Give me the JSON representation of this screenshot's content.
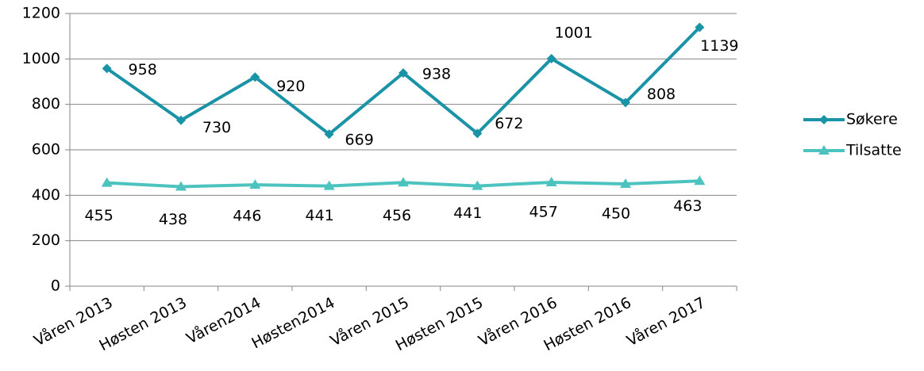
{
  "chart_data": {
    "type": "line",
    "categories": [
      "Våren 2013",
      "Høsten 2013",
      "Våren2014",
      "Høsten2014",
      "Våren 2015",
      "Høsten 2015",
      "Våren 2016",
      "Høsten 2016",
      "Våren 2017"
    ],
    "series": [
      {
        "name": "Søkere",
        "color": "#1b93a7",
        "marker": "diamond",
        "values": [
          958,
          730,
          920,
          669,
          938,
          672,
          1001,
          808,
          1139
        ]
      },
      {
        "name": "Tilsatte",
        "color": "#4cc3bf",
        "marker": "triangle",
        "values": [
          455,
          438,
          446,
          441,
          456,
          441,
          457,
          450,
          463
        ]
      }
    ],
    "ylim": [
      0,
      1200
    ],
    "yticks": [
      0,
      200,
      400,
      600,
      800,
      1000,
      1200
    ],
    "grid": true,
    "legend": "right"
  }
}
